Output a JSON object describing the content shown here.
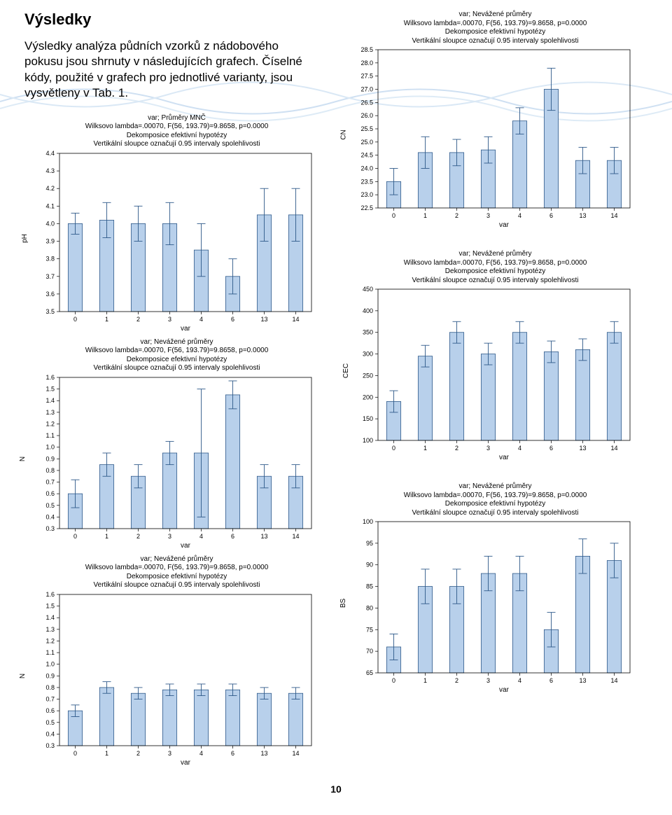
{
  "page_number": "10",
  "heading": "Výsledky",
  "intro": "Výsledky analýza půdních vzorků z nádobového pokusu jsou shrnuty v následujících grafech. Číselné kódy, použité v grafech pro jednotlivé varianty, jsou vysvětleny v Tab. 1.",
  "common_title_lines": {
    "nev1": "var; Nevážené průměry",
    "mnc1": "var; Průměry MNČ",
    "wilks": "Wilksovo lambda=.00070, F(56, 193.79)=9.8658, p=0.0000",
    "dek": "Dekomposice efektivní hypotézy",
    "vert": "Vertikální sloupce označují 0.95 intervaly spolehlivosti"
  },
  "bar_style": {
    "bar_fill": "#b8d0eb",
    "bar_stroke": "#2f5a8a",
    "err_stroke": "#2f5a8a",
    "frame_stroke": "#000000",
    "background": "#ffffff"
  },
  "charts": {
    "ph": {
      "type": "bar",
      "y_axis_label": "pH",
      "x_axis_label": "var",
      "title_key": "mnc1",
      "categories": [
        "0",
        "1",
        "2",
        "3",
        "4",
        "6",
        "13",
        "14"
      ],
      "values": [
        4.0,
        4.02,
        4.0,
        4.0,
        3.85,
        3.7,
        4.05,
        4.05
      ],
      "err": [
        0.06,
        0.1,
        0.1,
        0.12,
        0.15,
        0.1,
        0.15,
        0.15
      ],
      "ymin": 3.5,
      "ymax": 4.4,
      "ytick": 0.1
    },
    "n1": {
      "type": "bar",
      "y_axis_label": "N",
      "x_axis_label": "var",
      "title_key": "nev1",
      "categories": [
        "0",
        "1",
        "2",
        "3",
        "4",
        "6",
        "13",
        "14"
      ],
      "values": [
        0.6,
        0.85,
        0.75,
        0.95,
        0.95,
        1.45,
        0.75,
        0.75
      ],
      "err": [
        0.12,
        0.1,
        0.1,
        0.1,
        0.55,
        0.12,
        0.1,
        0.1
      ],
      "ymin": 0.3,
      "ymax": 1.6,
      "ytick": 0.1
    },
    "n2": {
      "type": "bar",
      "y_axis_label": "N",
      "x_axis_label": "var",
      "title_key": "nev1",
      "categories": [
        "0",
        "1",
        "2",
        "3",
        "4",
        "6",
        "13",
        "14"
      ],
      "values": [
        0.6,
        0.8,
        0.75,
        0.78,
        0.78,
        0.78,
        0.75,
        0.75
      ],
      "err": [
        0.05,
        0.05,
        0.05,
        0.05,
        0.05,
        0.05,
        0.05,
        0.05
      ],
      "ymin": 0.3,
      "ymax": 1.6,
      "ytick": 0.1
    },
    "cn": {
      "type": "bar",
      "y_axis_label": "CN",
      "x_axis_label": "var",
      "title_key": "nev1",
      "categories": [
        "0",
        "1",
        "2",
        "3",
        "4",
        "6",
        "13",
        "14"
      ],
      "values": [
        23.5,
        24.6,
        24.6,
        24.7,
        25.8,
        27.0,
        24.3,
        24.3
      ],
      "err": [
        0.5,
        0.6,
        0.5,
        0.5,
        0.5,
        0.8,
        0.5,
        0.5
      ],
      "ymin": 22.5,
      "ymax": 28.5,
      "ytick": 0.5
    },
    "cec": {
      "type": "bar",
      "y_axis_label": "CEC",
      "x_axis_label": "var",
      "title_key": "nev1",
      "categories": [
        "0",
        "1",
        "2",
        "3",
        "4",
        "6",
        "13",
        "14"
      ],
      "values": [
        190,
        295,
        350,
        300,
        350,
        305,
        310,
        350
      ],
      "err": [
        25,
        25,
        25,
        25,
        25,
        25,
        25,
        25
      ],
      "ymin": 100,
      "ymax": 450,
      "ytick": 50
    },
    "bs": {
      "type": "bar",
      "y_axis_label": "BS",
      "x_axis_label": "var",
      "title_key": "nev1",
      "categories": [
        "0",
        "1",
        "2",
        "3",
        "4",
        "6",
        "13",
        "14"
      ],
      "values": [
        71,
        85,
        85,
        88,
        88,
        75,
        92,
        91
      ],
      "err": [
        3,
        4,
        4,
        4,
        4,
        4,
        4,
        4
      ],
      "ymin": 65,
      "ymax": 100,
      "ytick": 5
    }
  }
}
